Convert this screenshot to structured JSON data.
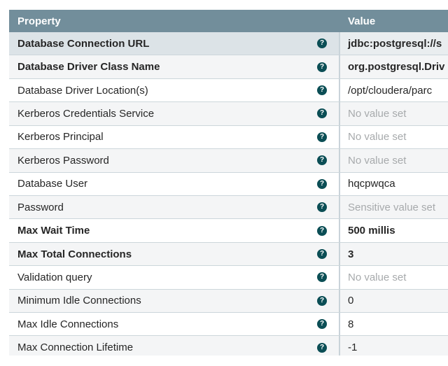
{
  "table": {
    "columns": {
      "property": "Property",
      "value": "Value"
    },
    "help_glyph": "?",
    "colors": {
      "header_bg": "#728e9b",
      "header_text": "#ffffff",
      "selected_property_bg": "#dce3e7",
      "selected_value_bg": "#e9edef",
      "even_row_bg": "#f4f5f6",
      "odd_row_bg": "#ffffff",
      "row_divider": "#ccd6db",
      "column_divider": "#c9d3d9",
      "text": "#262626",
      "muted_text": "#a7aaac",
      "help_icon_bg": "#0b4e55"
    },
    "rows": [
      {
        "property": "Database Connection URL",
        "value": "jdbc:postgresql://s"
      },
      {
        "property": "Database Driver Class Name",
        "value": "org.postgresql.Driv"
      },
      {
        "property": "Database Driver Location(s)",
        "value": "/opt/cloudera/parc"
      },
      {
        "property": "Kerberos Credentials Service",
        "value": "No value set"
      },
      {
        "property": "Kerberos Principal",
        "value": "No value set"
      },
      {
        "property": "Kerberos Password",
        "value": "No value set"
      },
      {
        "property": "Database User",
        "value": "hqcpwqca"
      },
      {
        "property": "Password",
        "value": "Sensitive value set"
      },
      {
        "property": "Max Wait Time",
        "value": "500 millis"
      },
      {
        "property": "Max Total Connections",
        "value": "3"
      },
      {
        "property": "Validation query",
        "value": "No value set"
      },
      {
        "property": "Minimum Idle Connections",
        "value": "0"
      },
      {
        "property": "Max Idle Connections",
        "value": "8"
      },
      {
        "property": "Max Connection Lifetime",
        "value": "-1"
      }
    ]
  }
}
